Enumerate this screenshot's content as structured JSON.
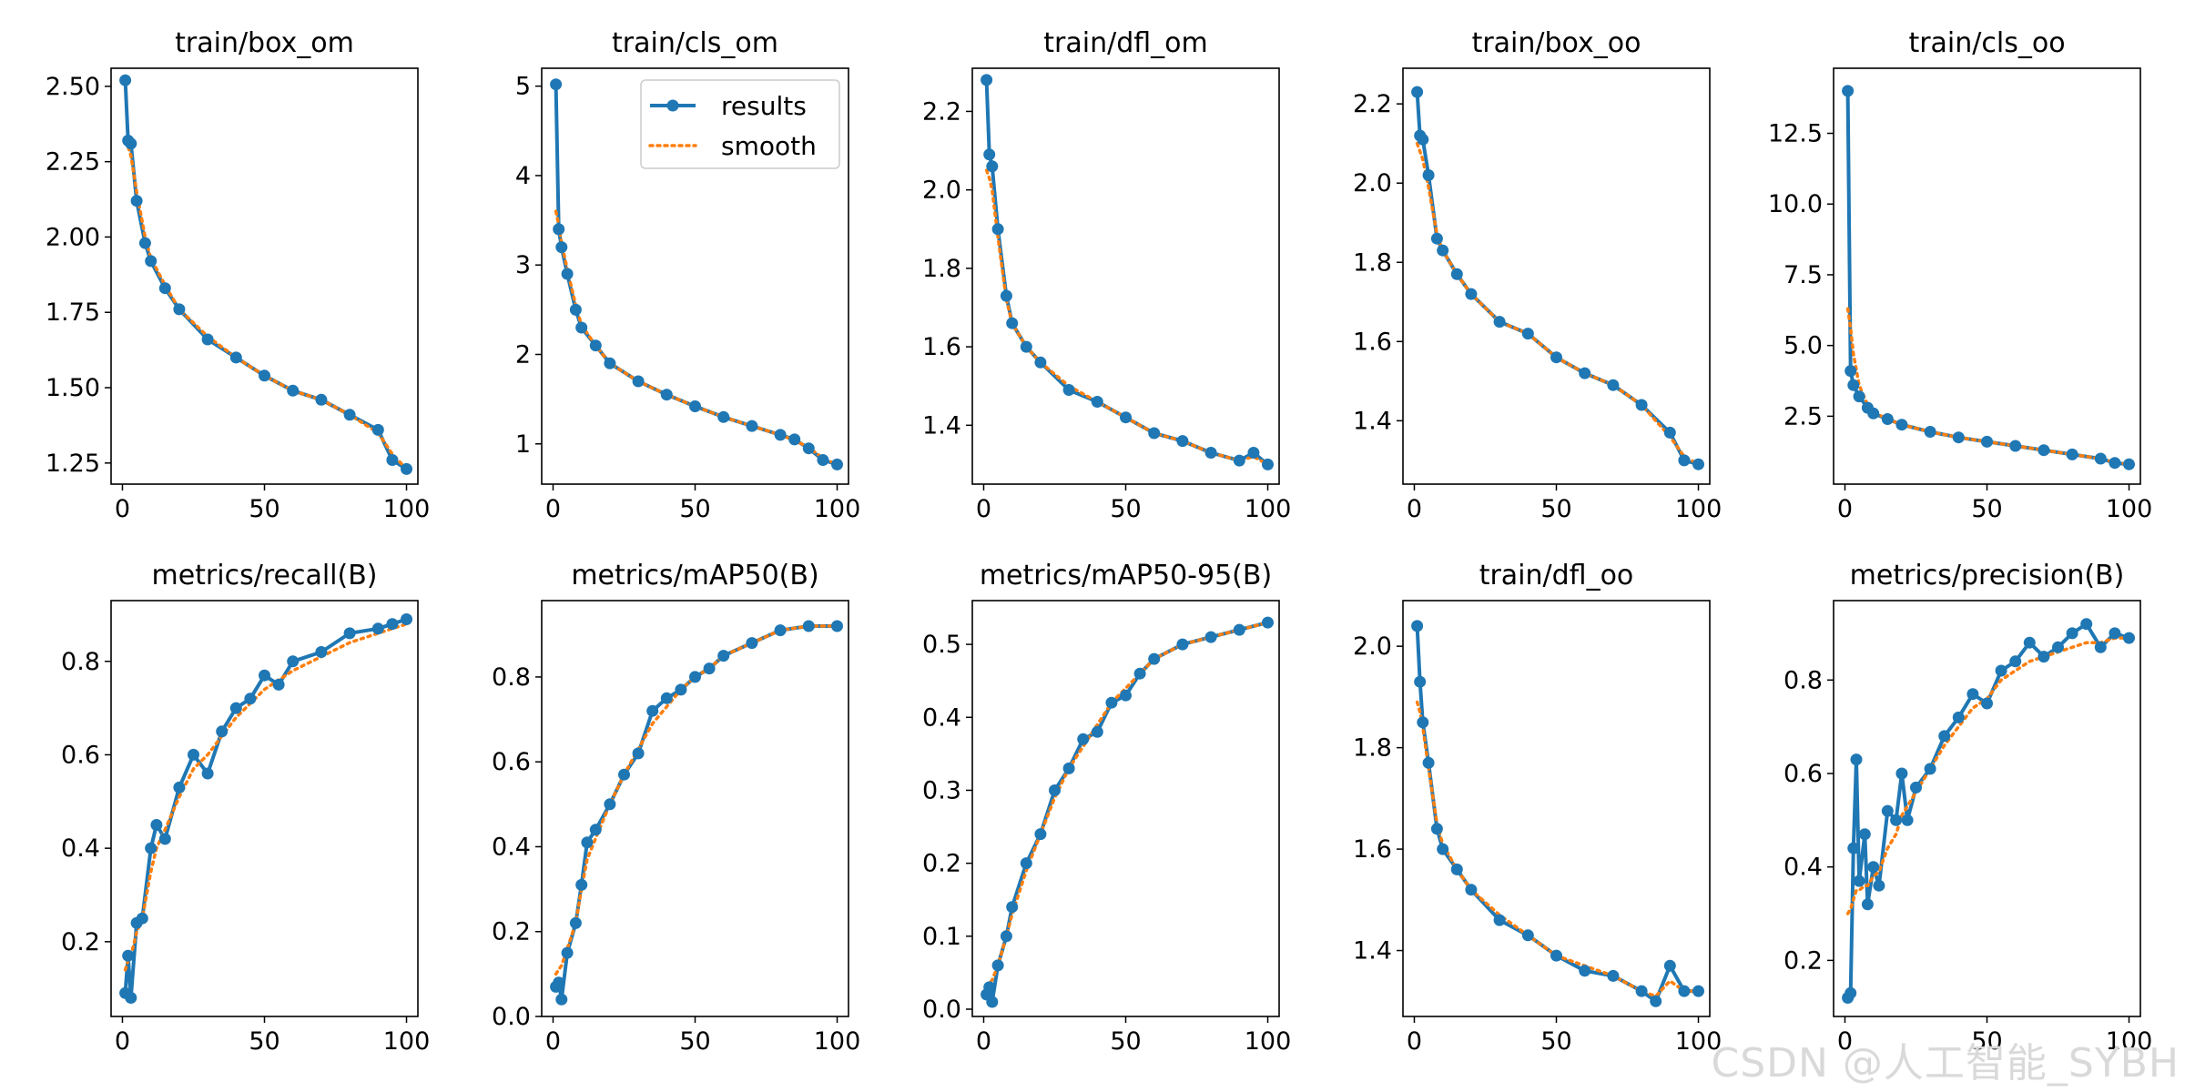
{
  "figure": {
    "legend": {
      "results_label": "results",
      "smooth_label": "smooth",
      "location": "upper right of train/cls_om"
    },
    "colors": {
      "results": "#1f77b4",
      "smooth": "#ff7f0e",
      "axes": "#000000"
    }
  },
  "watermark": "CSDN @人工智能_SYBH",
  "chart_data": [
    {
      "type": "line",
      "title": "train/box_om",
      "xlim": [
        -4,
        104
      ],
      "ylim": [
        1.18,
        2.56
      ],
      "xticks": [
        0,
        50,
        100
      ],
      "yticks": [
        1.25,
        1.5,
        1.75,
        2.0,
        2.25,
        2.5
      ],
      "yticklabels": [
        "1.25",
        "1.50",
        "1.75",
        "2.00",
        "2.25",
        "2.50"
      ],
      "x": [
        1,
        2,
        3,
        5,
        8,
        10,
        15,
        20,
        30,
        40,
        50,
        60,
        70,
        80,
        90,
        95,
        100
      ],
      "results": [
        2.52,
        2.32,
        2.31,
        2.12,
        1.98,
        1.92,
        1.83,
        1.76,
        1.66,
        1.6,
        1.54,
        1.49,
        1.46,
        1.41,
        1.36,
        1.26,
        1.23
      ],
      "smooth": [
        2.32,
        2.3,
        2.27,
        2.15,
        2.0,
        1.93,
        1.84,
        1.76,
        1.67,
        1.6,
        1.54,
        1.49,
        1.46,
        1.41,
        1.35,
        1.28,
        1.23
      ]
    },
    {
      "type": "line",
      "title": "train/cls_om",
      "xlim": [
        -4,
        104
      ],
      "ylim": [
        0.55,
        5.2
      ],
      "xticks": [
        0,
        50,
        100
      ],
      "yticks": [
        1,
        2,
        3,
        4,
        5
      ],
      "yticklabels": [
        "1",
        "2",
        "3",
        "4",
        "5"
      ],
      "x": [
        1,
        2,
        3,
        5,
        8,
        10,
        15,
        20,
        30,
        40,
        50,
        60,
        70,
        80,
        85,
        90,
        95,
        100
      ],
      "results": [
        5.02,
        3.4,
        3.2,
        2.9,
        2.5,
        2.3,
        2.1,
        1.9,
        1.7,
        1.55,
        1.42,
        1.3,
        1.2,
        1.1,
        1.05,
        0.95,
        0.82,
        0.77
      ],
      "smooth": [
        3.6,
        3.45,
        3.25,
        2.95,
        2.55,
        2.33,
        2.1,
        1.9,
        1.7,
        1.55,
        1.42,
        1.3,
        1.2,
        1.1,
        1.04,
        0.96,
        0.84,
        0.77
      ]
    },
    {
      "type": "line",
      "title": "train/dfl_om",
      "xlim": [
        -4,
        104
      ],
      "ylim": [
        1.25,
        2.31
      ],
      "xticks": [
        0,
        50,
        100
      ],
      "yticks": [
        1.4,
        1.6,
        1.8,
        2.0,
        2.2
      ],
      "yticklabels": [
        "1.4",
        "1.6",
        "1.8",
        "2.0",
        "2.2"
      ],
      "x": [
        1,
        2,
        3,
        5,
        8,
        10,
        15,
        20,
        30,
        40,
        50,
        60,
        70,
        80,
        90,
        95,
        100
      ],
      "results": [
        2.28,
        2.09,
        2.06,
        1.9,
        1.73,
        1.66,
        1.6,
        1.56,
        1.49,
        1.46,
        1.42,
        1.38,
        1.36,
        1.33,
        1.31,
        1.33,
        1.3
      ],
      "smooth": [
        2.05,
        2.03,
        2.0,
        1.88,
        1.72,
        1.66,
        1.6,
        1.56,
        1.5,
        1.46,
        1.42,
        1.38,
        1.36,
        1.33,
        1.31,
        1.32,
        1.3
      ]
    },
    {
      "type": "line",
      "title": "train/box_oo",
      "xlim": [
        -4,
        104
      ],
      "ylim": [
        1.24,
        2.29
      ],
      "xticks": [
        0,
        50,
        100
      ],
      "yticks": [
        1.4,
        1.6,
        1.8,
        2.0,
        2.2
      ],
      "yticklabels": [
        "1.4",
        "1.6",
        "1.8",
        "2.0",
        "2.2"
      ],
      "x": [
        1,
        2,
        3,
        5,
        8,
        10,
        15,
        20,
        30,
        40,
        50,
        60,
        70,
        80,
        90,
        95,
        100
      ],
      "results": [
        2.23,
        2.12,
        2.11,
        2.02,
        1.86,
        1.83,
        1.77,
        1.72,
        1.65,
        1.62,
        1.56,
        1.52,
        1.49,
        1.44,
        1.37,
        1.3,
        1.29
      ],
      "smooth": [
        2.1,
        2.08,
        2.06,
        1.99,
        1.87,
        1.83,
        1.77,
        1.72,
        1.65,
        1.62,
        1.56,
        1.52,
        1.49,
        1.44,
        1.36,
        1.31,
        1.29
      ]
    },
    {
      "type": "line",
      "title": "train/cls_oo",
      "xlim": [
        -4,
        104
      ],
      "ylim": [
        0.1,
        14.8
      ],
      "xticks": [
        0,
        50,
        100
      ],
      "yticks": [
        2.5,
        5.0,
        7.5,
        10.0,
        12.5
      ],
      "yticklabels": [
        "2.5",
        "5.0",
        "7.5",
        "10.0",
        "12.5"
      ],
      "x": [
        1,
        2,
        3,
        5,
        8,
        10,
        15,
        20,
        30,
        40,
        50,
        60,
        70,
        80,
        90,
        95,
        100
      ],
      "results": [
        14.0,
        4.1,
        3.6,
        3.2,
        2.8,
        2.6,
        2.4,
        2.2,
        1.95,
        1.75,
        1.6,
        1.45,
        1.3,
        1.15,
        1.0,
        0.85,
        0.8
      ],
      "smooth": [
        6.3,
        5.6,
        4.7,
        3.6,
        2.9,
        2.65,
        2.4,
        2.2,
        1.95,
        1.75,
        1.6,
        1.45,
        1.3,
        1.15,
        1.0,
        0.87,
        0.8
      ]
    },
    {
      "type": "line",
      "title": "metrics/recall(B)",
      "xlim": [
        -4,
        104
      ],
      "ylim": [
        0.04,
        0.93
      ],
      "xticks": [
        0,
        50,
        100
      ],
      "yticks": [
        0.2,
        0.4,
        0.6,
        0.8
      ],
      "yticklabels": [
        "0.2",
        "0.4",
        "0.6",
        "0.8"
      ],
      "x": [
        1,
        2,
        3,
        5,
        7,
        10,
        12,
        15,
        20,
        25,
        30,
        35,
        40,
        45,
        50,
        55,
        60,
        70,
        80,
        90,
        95,
        100
      ],
      "results": [
        0.09,
        0.17,
        0.08,
        0.24,
        0.25,
        0.4,
        0.45,
        0.42,
        0.53,
        0.6,
        0.56,
        0.65,
        0.7,
        0.72,
        0.77,
        0.75,
        0.8,
        0.82,
        0.86,
        0.87,
        0.88,
        0.89
      ],
      "smooth": [
        0.14,
        0.16,
        0.17,
        0.22,
        0.25,
        0.35,
        0.4,
        0.44,
        0.51,
        0.57,
        0.6,
        0.64,
        0.68,
        0.71,
        0.74,
        0.76,
        0.78,
        0.81,
        0.84,
        0.86,
        0.87,
        0.88
      ]
    },
    {
      "type": "line",
      "title": "metrics/mAP50(B)",
      "xlim": [
        -4,
        104
      ],
      "ylim": [
        0,
        0.98
      ],
      "xticks": [
        0,
        50,
        100
      ],
      "yticks": [
        0.0,
        0.2,
        0.4,
        0.6,
        0.8
      ],
      "yticklabels": [
        "0.0",
        "0.2",
        "0.4",
        "0.6",
        "0.8"
      ],
      "x": [
        1,
        2,
        3,
        5,
        8,
        10,
        12,
        15,
        20,
        25,
        30,
        35,
        40,
        45,
        50,
        55,
        60,
        70,
        80,
        90,
        100
      ],
      "results": [
        0.07,
        0.08,
        0.04,
        0.15,
        0.22,
        0.31,
        0.41,
        0.44,
        0.5,
        0.57,
        0.62,
        0.72,
        0.75,
        0.77,
        0.8,
        0.82,
        0.85,
        0.88,
        0.91,
        0.92,
        0.92
      ],
      "smooth": [
        0.1,
        0.11,
        0.12,
        0.16,
        0.22,
        0.3,
        0.37,
        0.42,
        0.5,
        0.57,
        0.63,
        0.69,
        0.73,
        0.77,
        0.8,
        0.82,
        0.85,
        0.88,
        0.91,
        0.92,
        0.92
      ]
    },
    {
      "type": "line",
      "title": "metrics/mAP50-95(B)",
      "xlim": [
        -4,
        104
      ],
      "ylim": [
        -0.01,
        0.56
      ],
      "xticks": [
        0,
        50,
        100
      ],
      "yticks": [
        0.0,
        0.1,
        0.2,
        0.3,
        0.4,
        0.5
      ],
      "yticklabels": [
        "0.0",
        "0.1",
        "0.2",
        "0.3",
        "0.4",
        "0.5"
      ],
      "x": [
        1,
        2,
        3,
        5,
        8,
        10,
        15,
        20,
        25,
        30,
        35,
        40,
        45,
        50,
        55,
        60,
        70,
        80,
        90,
        100
      ],
      "results": [
        0.02,
        0.03,
        0.01,
        0.06,
        0.1,
        0.14,
        0.2,
        0.24,
        0.3,
        0.33,
        0.37,
        0.38,
        0.42,
        0.43,
        0.46,
        0.48,
        0.5,
        0.51,
        0.52,
        0.53
      ],
      "smooth": [
        0.03,
        0.035,
        0.04,
        0.06,
        0.1,
        0.13,
        0.19,
        0.24,
        0.29,
        0.33,
        0.36,
        0.39,
        0.42,
        0.44,
        0.46,
        0.48,
        0.5,
        0.51,
        0.52,
        0.53
      ]
    },
    {
      "type": "line",
      "title": "train/dfl_oo",
      "xlim": [
        -4,
        104
      ],
      "ylim": [
        1.27,
        2.09
      ],
      "xticks": [
        0,
        50,
        100
      ],
      "yticks": [
        1.4,
        1.6,
        1.8,
        2.0
      ],
      "yticklabels": [
        "1.4",
        "1.6",
        "1.8",
        "2.0"
      ],
      "x": [
        1,
        2,
        3,
        5,
        8,
        10,
        15,
        20,
        30,
        40,
        50,
        60,
        70,
        80,
        85,
        90,
        95,
        100
      ],
      "results": [
        2.04,
        1.93,
        1.85,
        1.77,
        1.64,
        1.6,
        1.56,
        1.52,
        1.46,
        1.43,
        1.39,
        1.36,
        1.35,
        1.32,
        1.3,
        1.37,
        1.32,
        1.32
      ],
      "smooth": [
        1.89,
        1.87,
        1.84,
        1.76,
        1.65,
        1.61,
        1.56,
        1.52,
        1.47,
        1.43,
        1.39,
        1.37,
        1.35,
        1.32,
        1.31,
        1.34,
        1.32,
        1.32
      ]
    },
    {
      "type": "line",
      "title": "metrics/precision(B)",
      "xlim": [
        -4,
        104
      ],
      "ylim": [
        0.08,
        0.97
      ],
      "xticks": [
        0,
        50,
        100
      ],
      "yticks": [
        0.2,
        0.4,
        0.6,
        0.8
      ],
      "yticklabels": [
        "0.2",
        "0.4",
        "0.6",
        "0.8"
      ],
      "x": [
        1,
        2,
        3,
        4,
        5,
        7,
        8,
        10,
        12,
        15,
        18,
        20,
        22,
        25,
        30,
        35,
        40,
        45,
        50,
        55,
        60,
        65,
        70,
        75,
        80,
        85,
        90,
        95,
        100
      ],
      "results": [
        0.12,
        0.13,
        0.44,
        0.63,
        0.37,
        0.47,
        0.32,
        0.4,
        0.36,
        0.52,
        0.5,
        0.6,
        0.5,
        0.57,
        0.61,
        0.68,
        0.72,
        0.77,
        0.75,
        0.82,
        0.84,
        0.88,
        0.85,
        0.87,
        0.9,
        0.92,
        0.87,
        0.9,
        0.89
      ],
      "smooth": [
        0.3,
        0.31,
        0.33,
        0.35,
        0.35,
        0.36,
        0.36,
        0.38,
        0.39,
        0.44,
        0.47,
        0.51,
        0.53,
        0.56,
        0.61,
        0.66,
        0.7,
        0.74,
        0.76,
        0.8,
        0.82,
        0.84,
        0.85,
        0.86,
        0.87,
        0.88,
        0.88,
        0.89,
        0.89
      ]
    }
  ]
}
